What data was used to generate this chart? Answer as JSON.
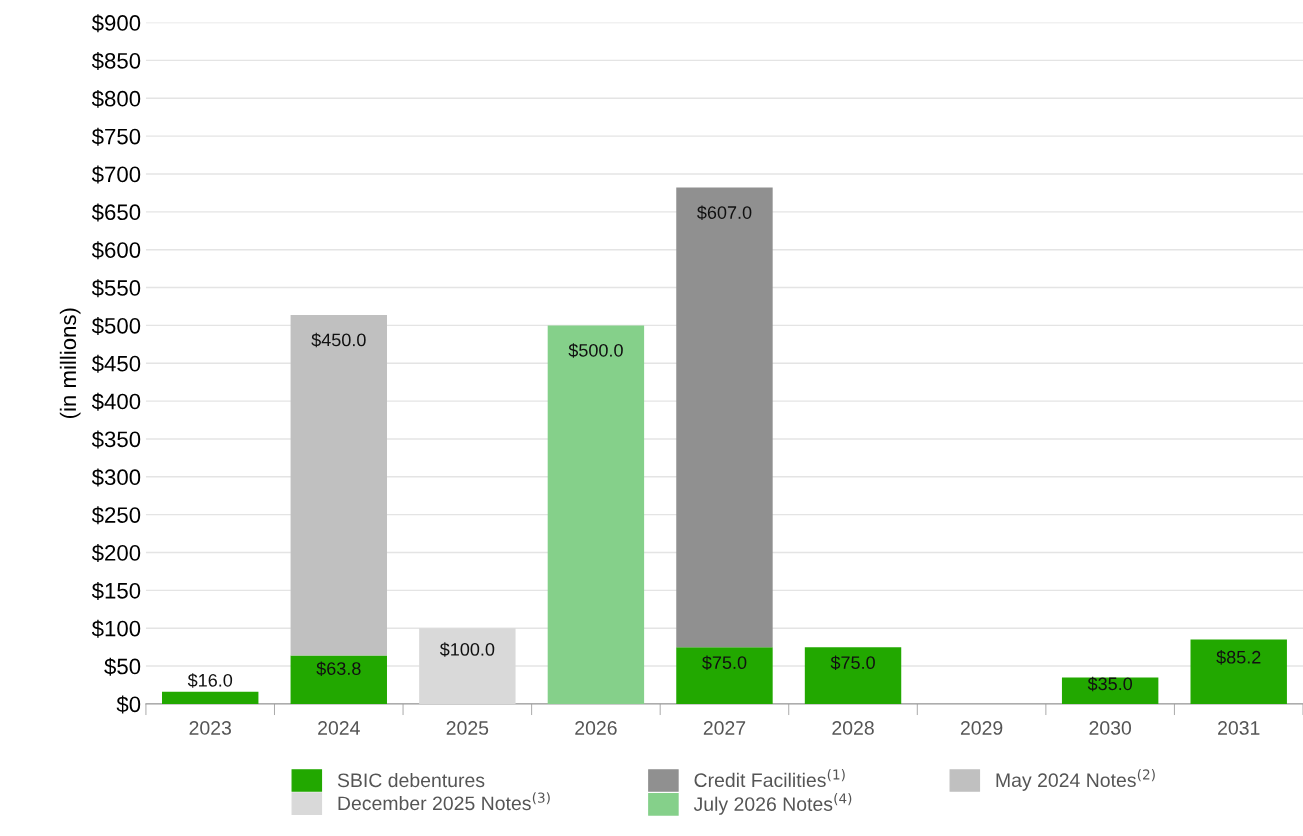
{
  "chart_data": {
    "type": "bar",
    "stacked": true,
    "ylabel": "(in millions)",
    "categories": [
      "2023",
      "2024",
      "2025",
      "2026",
      "2027",
      "2028",
      "2029",
      "2030",
      "2031"
    ],
    "series": [
      {
        "name": "SBIC debentures",
        "color": "#22a800",
        "values": [
          16.0,
          63.8,
          null,
          null,
          75.0,
          75.0,
          null,
          35.0,
          85.2
        ],
        "value_labels": [
          "$16.0",
          "$63.8",
          null,
          null,
          "$75.0",
          "$75.0",
          null,
          "$35.0",
          "$85.2"
        ]
      },
      {
        "name": "Credit Facilities$^{(1)}$",
        "color": "#909090",
        "values": [
          null,
          null,
          null,
          null,
          607.0,
          null,
          null,
          null,
          null
        ],
        "value_labels": [
          null,
          null,
          null,
          null,
          "$607.0",
          null,
          null,
          null,
          null
        ]
      },
      {
        "name": "May 2024 Notes$^{(2)}$",
        "color": "#c0c0c0",
        "values": [
          null,
          450.0,
          null,
          null,
          null,
          null,
          null,
          null,
          null
        ],
        "value_labels": [
          null,
          "$450.0",
          null,
          null,
          null,
          null,
          null,
          null,
          null
        ]
      },
      {
        "name": "December 2025 Notes$^{(3)}$",
        "color": "#d9d9d9",
        "values": [
          null,
          null,
          100.0,
          null,
          null,
          null,
          null,
          null,
          null
        ],
        "value_labels": [
          null,
          null,
          "$100.0",
          null,
          null,
          null,
          null,
          null,
          null
        ]
      },
      {
        "name": "July 2026 Notes$^{(4)}$",
        "color": "#85d08a",
        "values": [
          null,
          null,
          null,
          500.0,
          null,
          null,
          null,
          null,
          null
        ],
        "value_labels": [
          null,
          null,
          null,
          "$500.0",
          null,
          null,
          null,
          null,
          null
        ]
      }
    ],
    "ylim": [
      0,
      900
    ],
    "yticks": [
      {
        "value": 0,
        "label": "$0"
      },
      {
        "value": 50,
        "label": "$50"
      },
      {
        "value": 100,
        "label": "$100"
      },
      {
        "value": 150,
        "label": "$150"
      },
      {
        "value": 200,
        "label": "$200"
      },
      {
        "value": 250,
        "label": "$250"
      },
      {
        "value": 300,
        "label": "$300"
      },
      {
        "value": 350,
        "label": "$350"
      },
      {
        "value": 400,
        "label": "$400"
      },
      {
        "value": 450,
        "label": "$450"
      },
      {
        "value": 500,
        "label": "$500"
      },
      {
        "value": 550,
        "label": "$550"
      },
      {
        "value": 600,
        "label": "$600"
      },
      {
        "value": 650,
        "label": "$650"
      },
      {
        "value": 700,
        "label": "$700"
      },
      {
        "value": 750,
        "label": "$750"
      },
      {
        "value": 800,
        "label": "$800"
      },
      {
        "value": 850,
        "label": "$850"
      },
      {
        "value": 900,
        "label": "$900"
      }
    ],
    "grid": "y",
    "legend": "bottom"
  }
}
